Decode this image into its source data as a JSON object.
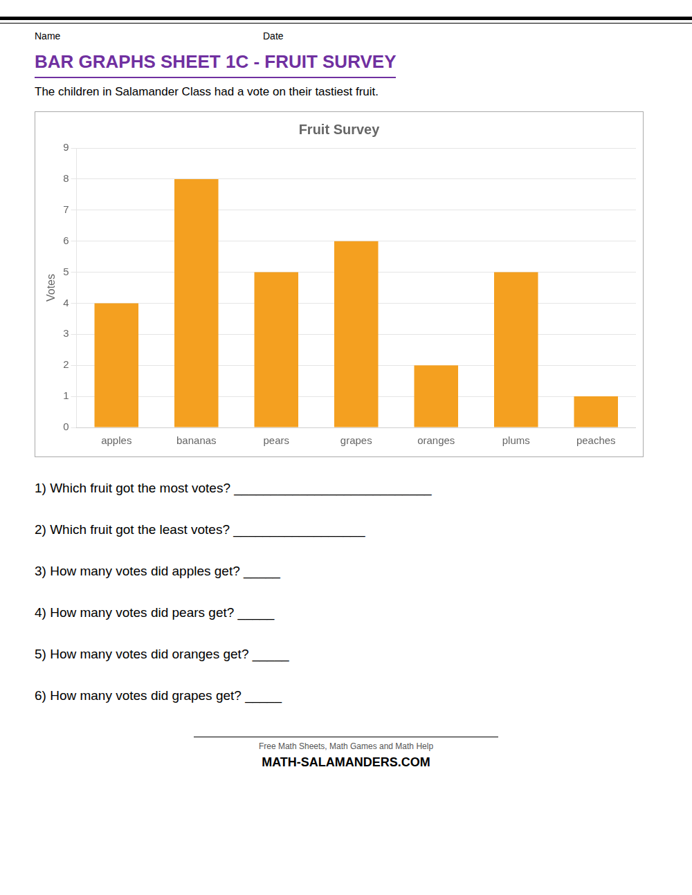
{
  "chart_data": {
    "type": "bar",
    "title": "Fruit Survey",
    "subtitle": "The children in Salamander Class had a vote on their tastiest fruit.",
    "categories": [
      "apples",
      "bananas",
      "pears",
      "grapes",
      "oranges",
      "plums",
      "peaches"
    ],
    "values": [
      4,
      8,
      5,
      6,
      2,
      5,
      1
    ],
    "color": "#F4A020",
    "ylabel": "Votes",
    "ylim": [
      0,
      9
    ],
    "yticks": [
      0,
      1,
      2,
      3,
      4,
      5,
      6,
      7,
      8,
      9
    ],
    "grid": true,
    "annotations": [
      "Name",
      "Date",
      "BAR GRAPHS SHEET 1C - FRUIT SURVEY",
      "1) Which fruit got the most votes? ___________________________",
      "2) Which fruit got the least votes? __________________",
      "3) How many votes did apples get? _____",
      "4) How many votes did pears get? _____",
      "5) How many votes did oranges get? _____",
      "6) How many votes did grapes get? _____",
      "Free Math Sheets, Math Games and Math Help",
      "MATH-SALAMANDERS.COM"
    ]
  }
}
